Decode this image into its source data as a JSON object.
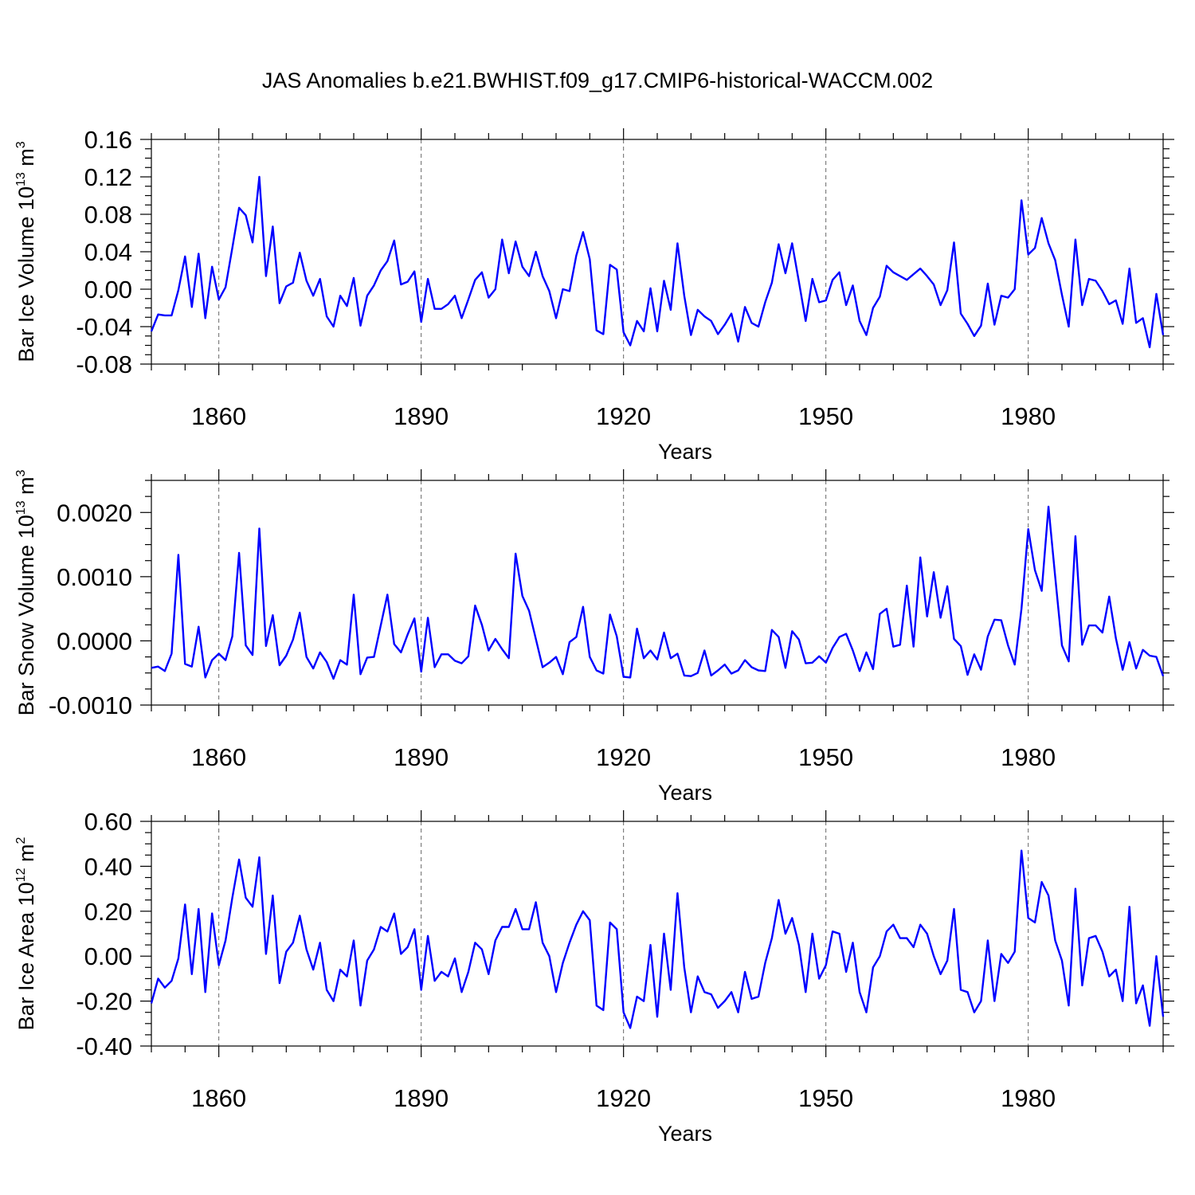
{
  "figure": {
    "title": "JAS Anomalies b.e21.BWHIST.f09_g17.CMIP6-historical-WACCM.002",
    "line_color": "#0000ff"
  },
  "chart_data": [
    {
      "type": "line",
      "id": "vol",
      "ylabel_main": "Bar Ice Volume 10",
      "ylabel_exp": "13",
      "ylabel_unit": " m",
      "ylabel_unit_exp": "3",
      "xlabel": "Years",
      "xlim": [
        1850,
        2000
      ],
      "ylim": [
        -0.08,
        0.16
      ],
      "x_ticks": [
        1860,
        1890,
        1920,
        1950,
        1980
      ],
      "x_tick_labels": [
        "1860",
        "1890",
        "1920",
        "1950",
        "1980"
      ],
      "y_ticks": [
        -0.08,
        -0.04,
        0.0,
        0.04,
        0.08,
        0.12,
        0.16
      ],
      "y_tick_labels": [
        "-0.08",
        "-0.04",
        "0.00",
        "0.04",
        "0.08",
        "0.12",
        "0.16"
      ],
      "y_minor_step": 0.01,
      "x_start": 1850,
      "values": [
        -0.045,
        -0.027,
        -0.028,
        -0.028,
        -0.001,
        0.035,
        -0.019,
        0.038,
        -0.031,
        0.024,
        -0.011,
        0.002,
        0.044,
        0.087,
        0.079,
        0.05,
        0.12,
        0.014,
        0.067,
        -0.015,
        0.003,
        0.007,
        0.039,
        0.009,
        -0.007,
        0.011,
        -0.029,
        -0.04,
        -0.007,
        -0.018,
        0.012,
        -0.039,
        -0.007,
        0.004,
        0.02,
        0.03,
        0.052,
        0.005,
        0.008,
        0.019,
        -0.035,
        0.011,
        -0.021,
        -0.021,
        -0.016,
        -0.007,
        -0.031,
        -0.011,
        0.01,
        0.018,
        -0.009,
        0.0,
        0.053,
        0.017,
        0.051,
        0.024,
        0.014,
        0.04,
        0.014,
        -0.002,
        -0.031,
        0.0,
        -0.002,
        0.036,
        0.061,
        0.032,
        -0.044,
        -0.048,
        0.026,
        0.021,
        -0.046,
        -0.06,
        -0.034,
        -0.045,
        0.001,
        -0.045,
        0.009,
        -0.022,
        0.049,
        -0.007,
        -0.049,
        -0.022,
        -0.029,
        -0.034,
        -0.048,
        -0.038,
        -0.026,
        -0.056,
        -0.019,
        -0.036,
        -0.04,
        -0.014,
        0.007,
        0.048,
        0.017,
        0.049,
        0.008,
        -0.034,
        0.011,
        -0.014,
        -0.012,
        0.01,
        0.018,
        -0.017,
        0.004,
        -0.034,
        -0.049,
        -0.02,
        -0.008,
        0.025,
        0.018,
        0.014,
        0.01,
        0.016,
        0.022,
        0.014,
        0.005,
        -0.017,
        -0.001,
        0.05,
        -0.026,
        -0.037,
        -0.05,
        -0.039,
        0.006,
        -0.038,
        -0.007,
        -0.009,
        0.0,
        0.095,
        0.037,
        0.044,
        0.076,
        0.049,
        0.031,
        -0.006,
        -0.04,
        0.053,
        -0.017,
        0.011,
        0.009,
        -0.002,
        -0.016,
        -0.012,
        -0.037,
        0.022,
        -0.036,
        -0.031,
        -0.062,
        -0.005,
        -0.049
      ]
    },
    {
      "type": "line",
      "id": "snow",
      "ylabel_main": "Bar Snow Volume 10",
      "ylabel_exp": "13",
      "ylabel_unit": " m",
      "ylabel_unit_exp": "3",
      "xlabel": "Years",
      "xlim": [
        1850,
        2000
      ],
      "ylim": [
        -0.001,
        0.0025
      ],
      "x_ticks": [
        1860,
        1890,
        1920,
        1950,
        1980
      ],
      "x_tick_labels": [
        "1860",
        "1890",
        "1920",
        "1950",
        "1980"
      ],
      "y_ticks": [
        -0.001,
        0.0,
        0.001,
        0.002
      ],
      "y_tick_labels": [
        "-0.0010",
        "0.0000",
        "0.0010",
        "0.0020"
      ],
      "y_minor_step": 0.00025,
      "x_start": 1850,
      "values": [
        -0.00042,
        -0.0004,
        -0.00047,
        -0.0002,
        0.00134,
        -0.00036,
        -0.0004,
        0.00022,
        -0.00057,
        -0.0003,
        -0.0002,
        -0.0003,
        7e-05,
        0.00137,
        -7e-05,
        -0.00022,
        0.00175,
        -8e-05,
        0.0004,
        -0.00038,
        -0.00023,
        2e-05,
        0.00044,
        -0.00025,
        -0.00043,
        -0.00018,
        -0.00033,
        -0.00059,
        -0.0003,
        -0.00037,
        0.00072,
        -0.00052,
        -0.00026,
        -0.00025,
        0.00024,
        0.00072,
        -5e-05,
        -0.00018,
        0.0001,
        0.00035,
        -0.00048,
        0.00036,
        -0.00041,
        -0.00021,
        -0.00021,
        -0.00031,
        -0.00035,
        -0.00024,
        0.00055,
        0.00025,
        -0.00015,
        3e-05,
        -0.00013,
        -0.00027,
        0.00136,
        0.0007,
        0.00047,
        3e-05,
        -0.00041,
        -0.00034,
        -0.00025,
        -0.00052,
        -2e-05,
        6e-05,
        0.00053,
        -0.00025,
        -0.00046,
        -0.00051,
        0.00041,
        7e-05,
        -0.00056,
        -0.00057,
        0.00019,
        -0.00027,
        -0.00015,
        -0.00029,
        0.00013,
        -0.00027,
        -0.0002,
        -0.00054,
        -0.00055,
        -0.0005,
        -0.00015,
        -0.00054,
        -0.00046,
        -0.00037,
        -0.00051,
        -0.00046,
        -0.0003,
        -0.00041,
        -0.00046,
        -0.00047,
        0.00017,
        6e-05,
        -0.00042,
        0.00015,
        2e-05,
        -0.00035,
        -0.00034,
        -0.00024,
        -0.00034,
        -0.00011,
        6e-05,
        0.00011,
        -0.00015,
        -0.00047,
        -0.00018,
        -0.00044,
        0.00042,
        0.0005,
        -9e-05,
        -6e-05,
        0.00086,
        -9e-05,
        0.0013,
        0.00038,
        0.00107,
        0.00036,
        0.00085,
        3e-05,
        -8e-05,
        -0.00053,
        -0.00021,
        -0.00045,
        7e-05,
        0.00033,
        0.00032,
        -7e-05,
        -0.00037,
        0.0005,
        0.00174,
        0.0011,
        0.00078,
        0.00209,
        0.001,
        -7e-05,
        -0.00032,
        0.00163,
        -6e-05,
        0.00024,
        0.00024,
        0.00013,
        0.00069,
        4e-05,
        -0.00045,
        -2e-05,
        -0.00043,
        -0.00014,
        -0.00023,
        -0.00025,
        -0.00055
      ]
    },
    {
      "type": "line",
      "id": "area",
      "ylabel_main": "Bar Ice Area 10",
      "ylabel_exp": "12",
      "ylabel_unit": " m",
      "ylabel_unit_exp": "2",
      "xlabel": "Years",
      "xlim": [
        1850,
        2000
      ],
      "ylim": [
        -0.4,
        0.6
      ],
      "x_ticks": [
        1860,
        1890,
        1920,
        1950,
        1980
      ],
      "x_tick_labels": [
        "1860",
        "1890",
        "1920",
        "1950",
        "1980"
      ],
      "y_ticks": [
        -0.4,
        -0.2,
        0.0,
        0.2,
        0.4,
        0.6
      ],
      "y_tick_labels": [
        "-0.40",
        "-0.20",
        "0.00",
        "0.20",
        "0.40",
        "0.60"
      ],
      "y_minor_step": 0.05,
      "x_start": 1850,
      "values": [
        -0.21,
        -0.1,
        -0.14,
        -0.11,
        -0.01,
        0.23,
        -0.08,
        0.21,
        -0.16,
        0.19,
        -0.04,
        0.07,
        0.26,
        0.43,
        0.26,
        0.22,
        0.44,
        0.01,
        0.27,
        -0.12,
        0.02,
        0.06,
        0.18,
        0.03,
        -0.06,
        0.06,
        -0.15,
        -0.2,
        -0.06,
        -0.09,
        0.07,
        -0.22,
        -0.02,
        0.03,
        0.13,
        0.11,
        0.19,
        0.01,
        0.04,
        0.12,
        -0.15,
        0.09,
        -0.11,
        -0.07,
        -0.09,
        -0.01,
        -0.16,
        -0.07,
        0.06,
        0.03,
        -0.08,
        0.07,
        0.13,
        0.13,
        0.21,
        0.12,
        0.12,
        0.24,
        0.06,
        0.0,
        -0.16,
        -0.03,
        0.06,
        0.14,
        0.2,
        0.16,
        -0.22,
        -0.24,
        0.15,
        0.12,
        -0.25,
        -0.32,
        -0.18,
        -0.2,
        0.05,
        -0.27,
        0.1,
        -0.15,
        0.28,
        -0.05,
        -0.25,
        -0.09,
        -0.16,
        -0.17,
        -0.23,
        -0.2,
        -0.16,
        -0.25,
        -0.07,
        -0.19,
        -0.18,
        -0.03,
        0.08,
        0.25,
        0.1,
        0.17,
        0.05,
        -0.16,
        0.1,
        -0.1,
        -0.04,
        0.11,
        0.1,
        -0.07,
        0.06,
        -0.16,
        -0.25,
        -0.05,
        0.0,
        0.11,
        0.14,
        0.08,
        0.08,
        0.04,
        0.14,
        0.1,
        0.0,
        -0.08,
        -0.02,
        0.21,
        -0.15,
        -0.16,
        -0.25,
        -0.2,
        0.07,
        -0.2,
        0.01,
        -0.03,
        0.02,
        0.47,
        0.17,
        0.15,
        0.33,
        0.27,
        0.07,
        -0.02,
        -0.22,
        0.3,
        -0.13,
        0.08,
        0.09,
        0.02,
        -0.09,
        -0.06,
        -0.2,
        0.22,
        -0.21,
        -0.13,
        -0.31,
        0.0,
        -0.27
      ]
    }
  ]
}
